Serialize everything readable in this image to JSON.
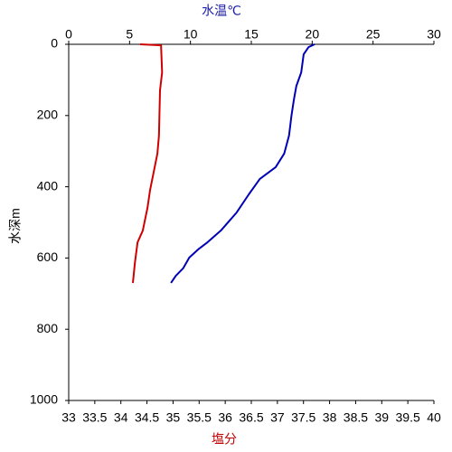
{
  "chart_data": {
    "type": "line",
    "x2label": "水温℃",
    "xlabel": "塩分",
    "ylabel": "水深m",
    "x2label_color": "#1a1aa8",
    "xlabel_color": "#c00000",
    "xlim": [
      33,
      40
    ],
    "xticks": [
      33,
      33.5,
      34,
      34.5,
      35,
      35.5,
      36,
      36.5,
      37,
      37.5,
      38,
      38.5,
      39,
      39.5,
      40
    ],
    "x2lim": [
      0,
      30
    ],
    "x2ticks": [
      0,
      5,
      10,
      15,
      20,
      25,
      30
    ],
    "ylim": [
      0,
      1000
    ],
    "yticks": [
      0,
      200,
      400,
      600,
      800,
      1000
    ],
    "y_inverted": true,
    "series": [
      {
        "color": "#0000b4",
        "axis": "x2",
        "x": [
          20.2,
          19.7,
          19.3,
          19.1,
          18.7,
          18.5,
          18.3,
          18.1,
          17.7,
          17.0,
          15.7,
          14.8,
          13.8,
          12.5,
          11.4,
          10.7,
          9.9,
          9.4,
          8.8,
          8.4
        ],
        "y": [
          0,
          8,
          28,
          79,
          117,
          155,
          200,
          256,
          307,
          345,
          378,
          421,
          472,
          523,
          556,
          574,
          599,
          629,
          650,
          670
        ]
      },
      {
        "color": "#d00000",
        "axis": "x",
        "x": [
          34.37,
          34.77,
          34.79,
          34.75,
          34.73,
          34.7,
          34.63,
          34.56,
          34.51,
          34.42,
          34.32,
          34.27,
          34.23
        ],
        "y": [
          0,
          3,
          79,
          129,
          256,
          307,
          358,
          409,
          459,
          523,
          556,
          612,
          670
        ]
      }
    ]
  }
}
